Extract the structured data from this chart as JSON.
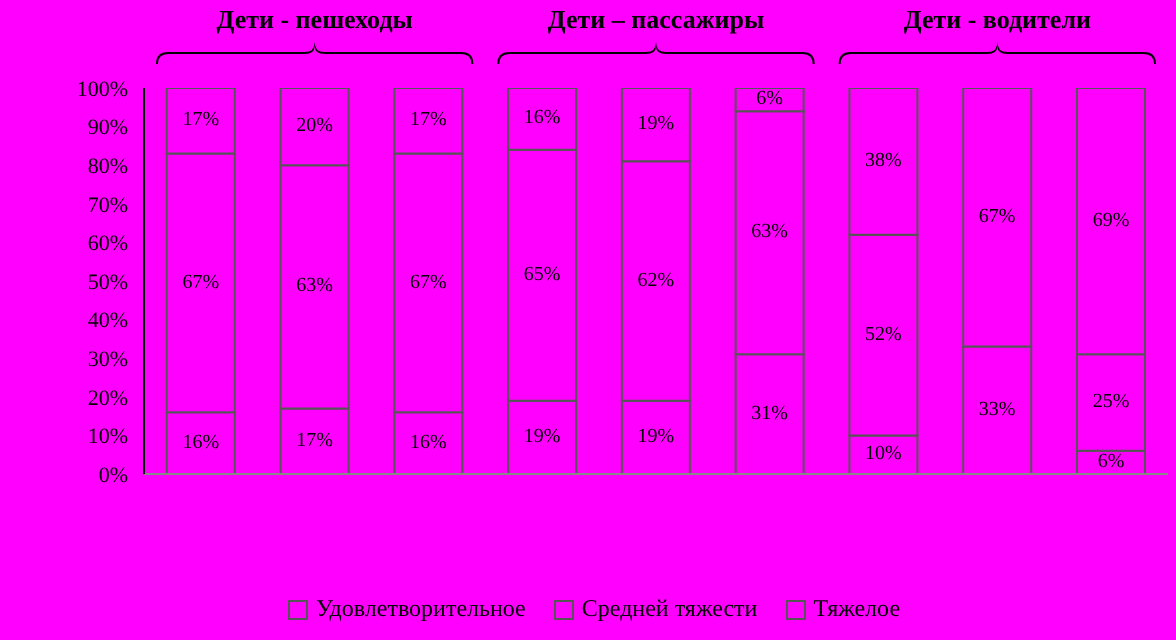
{
  "chart_data": {
    "type": "bar",
    "stacked": true,
    "categories": [
      null,
      null,
      null,
      null,
      null,
      null,
      null,
      null,
      null
    ],
    "series": [
      {
        "name": "Удовлетворительное",
        "color": "#ff00ff",
        "values": [
          16,
          17,
          16,
          19,
          19,
          31,
          10,
          33,
          6
        ],
        "value_labels": [
          "16%",
          "17%",
          "16%",
          "19%",
          "19%",
          "31%",
          "10%",
          "33%",
          "6%"
        ]
      },
      {
        "name": "Средней тяжести",
        "color": "#ff00ff",
        "values": [
          67,
          63,
          67,
          65,
          62,
          63,
          52,
          67,
          25
        ],
        "value_labels": [
          "67%",
          "63%",
          "67%",
          "65%",
          "62%",
          "63%",
          "52%",
          "67%",
          "25%"
        ]
      },
      {
        "name": "Тяжелое",
        "color": "#ff00ff",
        "values": [
          17,
          20,
          17,
          16,
          19,
          6,
          38,
          0,
          69
        ],
        "value_labels": [
          "17%",
          "20%",
          "17%",
          "16%",
          "19%",
          "6%",
          "38%",
          null,
          "69%"
        ]
      }
    ],
    "ylim": [
      0,
      100
    ],
    "yticks": [
      {
        "value": 0,
        "label": "0%"
      },
      {
        "value": 10,
        "label": "10%"
      },
      {
        "value": 20,
        "label": "20%"
      },
      {
        "value": 30,
        "label": "30%"
      },
      {
        "value": 40,
        "label": "40%"
      },
      {
        "value": 50,
        "label": "50%"
      },
      {
        "value": 60,
        "label": "60%"
      },
      {
        "value": 70,
        "label": "70%"
      },
      {
        "value": 80,
        "label": "80%"
      },
      {
        "value": 90,
        "label": "90%"
      },
      {
        "value": 100,
        "label": "100%"
      }
    ],
    "annotations": [
      "Дети - пешеходы",
      "Дети – пассажиры",
      "Дети - водители"
    ],
    "grid": false,
    "legend": "bottom"
  }
}
